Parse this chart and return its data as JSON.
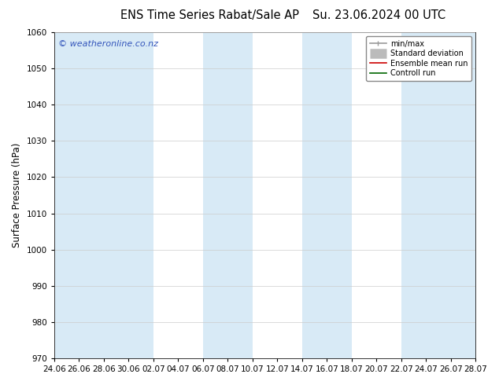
{
  "title_left": "ENS Time Series Rabat/Sale AP",
  "title_right": "Su. 23.06.2024 00 UTC",
  "ylabel": "Surface Pressure (hPa)",
  "ylim": [
    970,
    1060
  ],
  "yticks": [
    970,
    980,
    990,
    1000,
    1010,
    1020,
    1030,
    1040,
    1050,
    1060
  ],
  "xlabel_ticks": [
    "24.06",
    "26.06",
    "28.06",
    "30.06",
    "02.07",
    "04.07",
    "06.07",
    "08.07",
    "10.07",
    "12.07",
    "14.07",
    "16.07",
    "18.07",
    "20.07",
    "22.07",
    "24.07",
    "26.07",
    "28.07"
  ],
  "background_color": "#ffffff",
  "plot_bg_color": "#ffffff",
  "shaded_band_color": "#d8eaf6",
  "watermark_text": "© weatheronline.co.nz",
  "watermark_color": "#3355bb",
  "legend_items": [
    {
      "label": "min/max",
      "color": "#999999",
      "lw": 1.2
    },
    {
      "label": "Standard deviation",
      "color": "#bbbbbb",
      "lw": 7
    },
    {
      "label": "Ensemble mean run",
      "color": "#cc0000",
      "lw": 1.2
    },
    {
      "label": "Controll run",
      "color": "#006600",
      "lw": 1.2
    }
  ],
  "shaded_band_indices": [
    0,
    2,
    6,
    10,
    14,
    16
  ],
  "tick_label_fontsize": 7.5,
  "title_fontsize": 10.5,
  "ylabel_fontsize": 8.5,
  "watermark_fontsize": 8
}
